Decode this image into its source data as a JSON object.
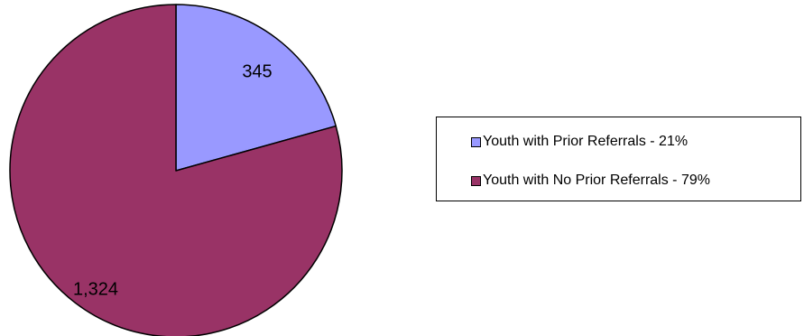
{
  "chart_data": {
    "type": "pie",
    "slices": [
      {
        "label": "Youth with Prior Referrals - 21%",
        "value": 345,
        "value_label": "345",
        "color": "#9999ff"
      },
      {
        "label": "Youth with No Prior Referrals - 79%",
        "value": 1324,
        "value_label": "1,324",
        "color": "#993366"
      }
    ],
    "start_angle": "12 o'clock",
    "direction": "clockwise",
    "legend_placement": "right",
    "title": "",
    "slice_edge_color": "#000000"
  }
}
